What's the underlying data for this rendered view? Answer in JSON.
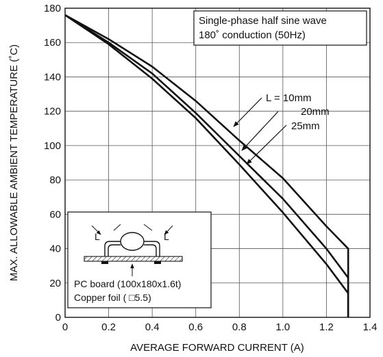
{
  "chart_data": {
    "type": "line",
    "xlabel": "AVERAGE FORWARD CURRENT (A)",
    "ylabel": "MAX. ALLOWABLE AMBIENT TEMPERATURE (˚C)",
    "xlim": [
      0,
      1.4
    ],
    "ylim": [
      0,
      180
    ],
    "x_ticks": [
      "0",
      "0.2",
      "0.4",
      "0.6",
      "0.8",
      "1.0",
      "1.2",
      "1.4"
    ],
    "y_ticks": [
      "0",
      "20",
      "40",
      "60",
      "80",
      "100",
      "120",
      "140",
      "160",
      "180"
    ],
    "grid": true,
    "condition_box": {
      "line1": "Single-phase half sine wave",
      "line2": "180˚ conduction (50Hz)"
    },
    "series": [
      {
        "name": "L = 10mm",
        "points": [
          [
            0,
            176
          ],
          [
            0.2,
            162
          ],
          [
            0.4,
            146
          ],
          [
            0.6,
            126
          ],
          [
            0.8,
            103
          ],
          [
            1.0,
            81
          ],
          [
            1.2,
            53
          ],
          [
            1.3,
            40
          ],
          [
            1.3,
            0
          ]
        ]
      },
      {
        "name": "20mm",
        "points": [
          [
            0,
            176
          ],
          [
            0.2,
            160
          ],
          [
            0.4,
            142
          ],
          [
            0.6,
            119
          ],
          [
            0.8,
            94
          ],
          [
            1.0,
            69
          ],
          [
            1.2,
            40
          ],
          [
            1.3,
            23
          ],
          [
            1.3,
            0
          ]
        ]
      },
      {
        "name": "25mm",
        "points": [
          [
            0,
            176
          ],
          [
            0.2,
            159
          ],
          [
            0.4,
            139
          ],
          [
            0.6,
            116
          ],
          [
            0.8,
            89
          ],
          [
            1.0,
            61
          ],
          [
            1.2,
            31
          ],
          [
            1.3,
            14
          ],
          [
            1.3,
            0
          ]
        ]
      }
    ],
    "inset": {
      "dim_left": "L",
      "dim_right": "L",
      "board_label": "PC board (100x180x1.6t)",
      "foil_label": "Copper foil ( □5.5)"
    }
  }
}
